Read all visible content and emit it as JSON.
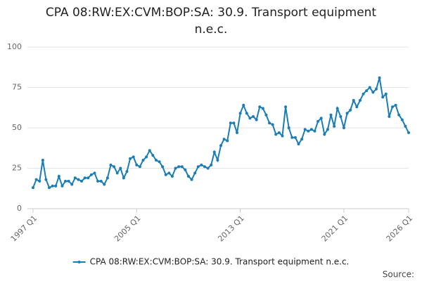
{
  "chart_data": {
    "type": "line",
    "title": "CPA 08:RW:EX:CVM:BOP:SA: 30.9. Transport equipment n.e.c.",
    "source": "Source:",
    "categories": [
      "1997 Q1",
      null,
      null,
      null,
      null,
      null,
      null,
      null,
      null,
      null,
      null,
      null,
      null,
      null,
      null,
      null,
      null,
      null,
      null,
      null,
      null,
      null,
      null,
      null,
      null,
      null,
      null,
      null,
      null,
      null,
      null,
      null,
      "2005 Q1",
      null,
      null,
      null,
      null,
      null,
      null,
      null,
      null,
      null,
      null,
      null,
      null,
      null,
      null,
      null,
      null,
      null,
      null,
      null,
      null,
      null,
      null,
      null,
      null,
      null,
      null,
      null,
      null,
      null,
      null,
      null,
      "2013 Q1",
      null,
      null,
      null,
      null,
      null,
      null,
      null,
      null,
      null,
      null,
      null,
      null,
      null,
      null,
      null,
      null,
      null,
      null,
      null,
      null,
      null,
      null,
      null,
      null,
      null,
      null,
      null,
      null,
      null,
      null,
      null,
      "2021 Q1",
      null,
      null,
      null,
      null,
      null,
      null,
      null,
      null,
      null,
      null,
      null,
      null,
      null,
      null,
      null,
      null,
      null,
      null,
      null,
      "2026 Q1"
    ],
    "series": [
      {
        "name": "CPA 08:RW:EX:CVM:BOP:SA: 30.9. Transport equipment n.e.c.",
        "color": "#1a7db6",
        "values": [
          13,
          18,
          17,
          30,
          18,
          13,
          14,
          14,
          20,
          14,
          17,
          17,
          15,
          19,
          18,
          17,
          19,
          19,
          21,
          22,
          17,
          17,
          15,
          19,
          27,
          26,
          22,
          25,
          19,
          23,
          31,
          32,
          27,
          26,
          30,
          32,
          36,
          33,
          30,
          29,
          26,
          21,
          22,
          20,
          25,
          26,
          26,
          24,
          20,
          18,
          22,
          26,
          27,
          26,
          25,
          27,
          35,
          30,
          39,
          43,
          42,
          53,
          53,
          47,
          59,
          64,
          59,
          56,
          57,
          55,
          63,
          62,
          58,
          53,
          52,
          46,
          47,
          45,
          63,
          50,
          44,
          44,
          40,
          43,
          49,
          48,
          49,
          48,
          54,
          56,
          46,
          49,
          58,
          51,
          62,
          57,
          50,
          59,
          61,
          67,
          63,
          67,
          71,
          73,
          75,
          72,
          74,
          81,
          69,
          71,
          57,
          63,
          64,
          58,
          55,
          51,
          47
        ]
      }
    ],
    "ylim": [
      0,
      100
    ],
    "yticks": [
      0,
      25,
      50,
      75,
      100
    ],
    "grid": true,
    "legend": "bottom"
  }
}
